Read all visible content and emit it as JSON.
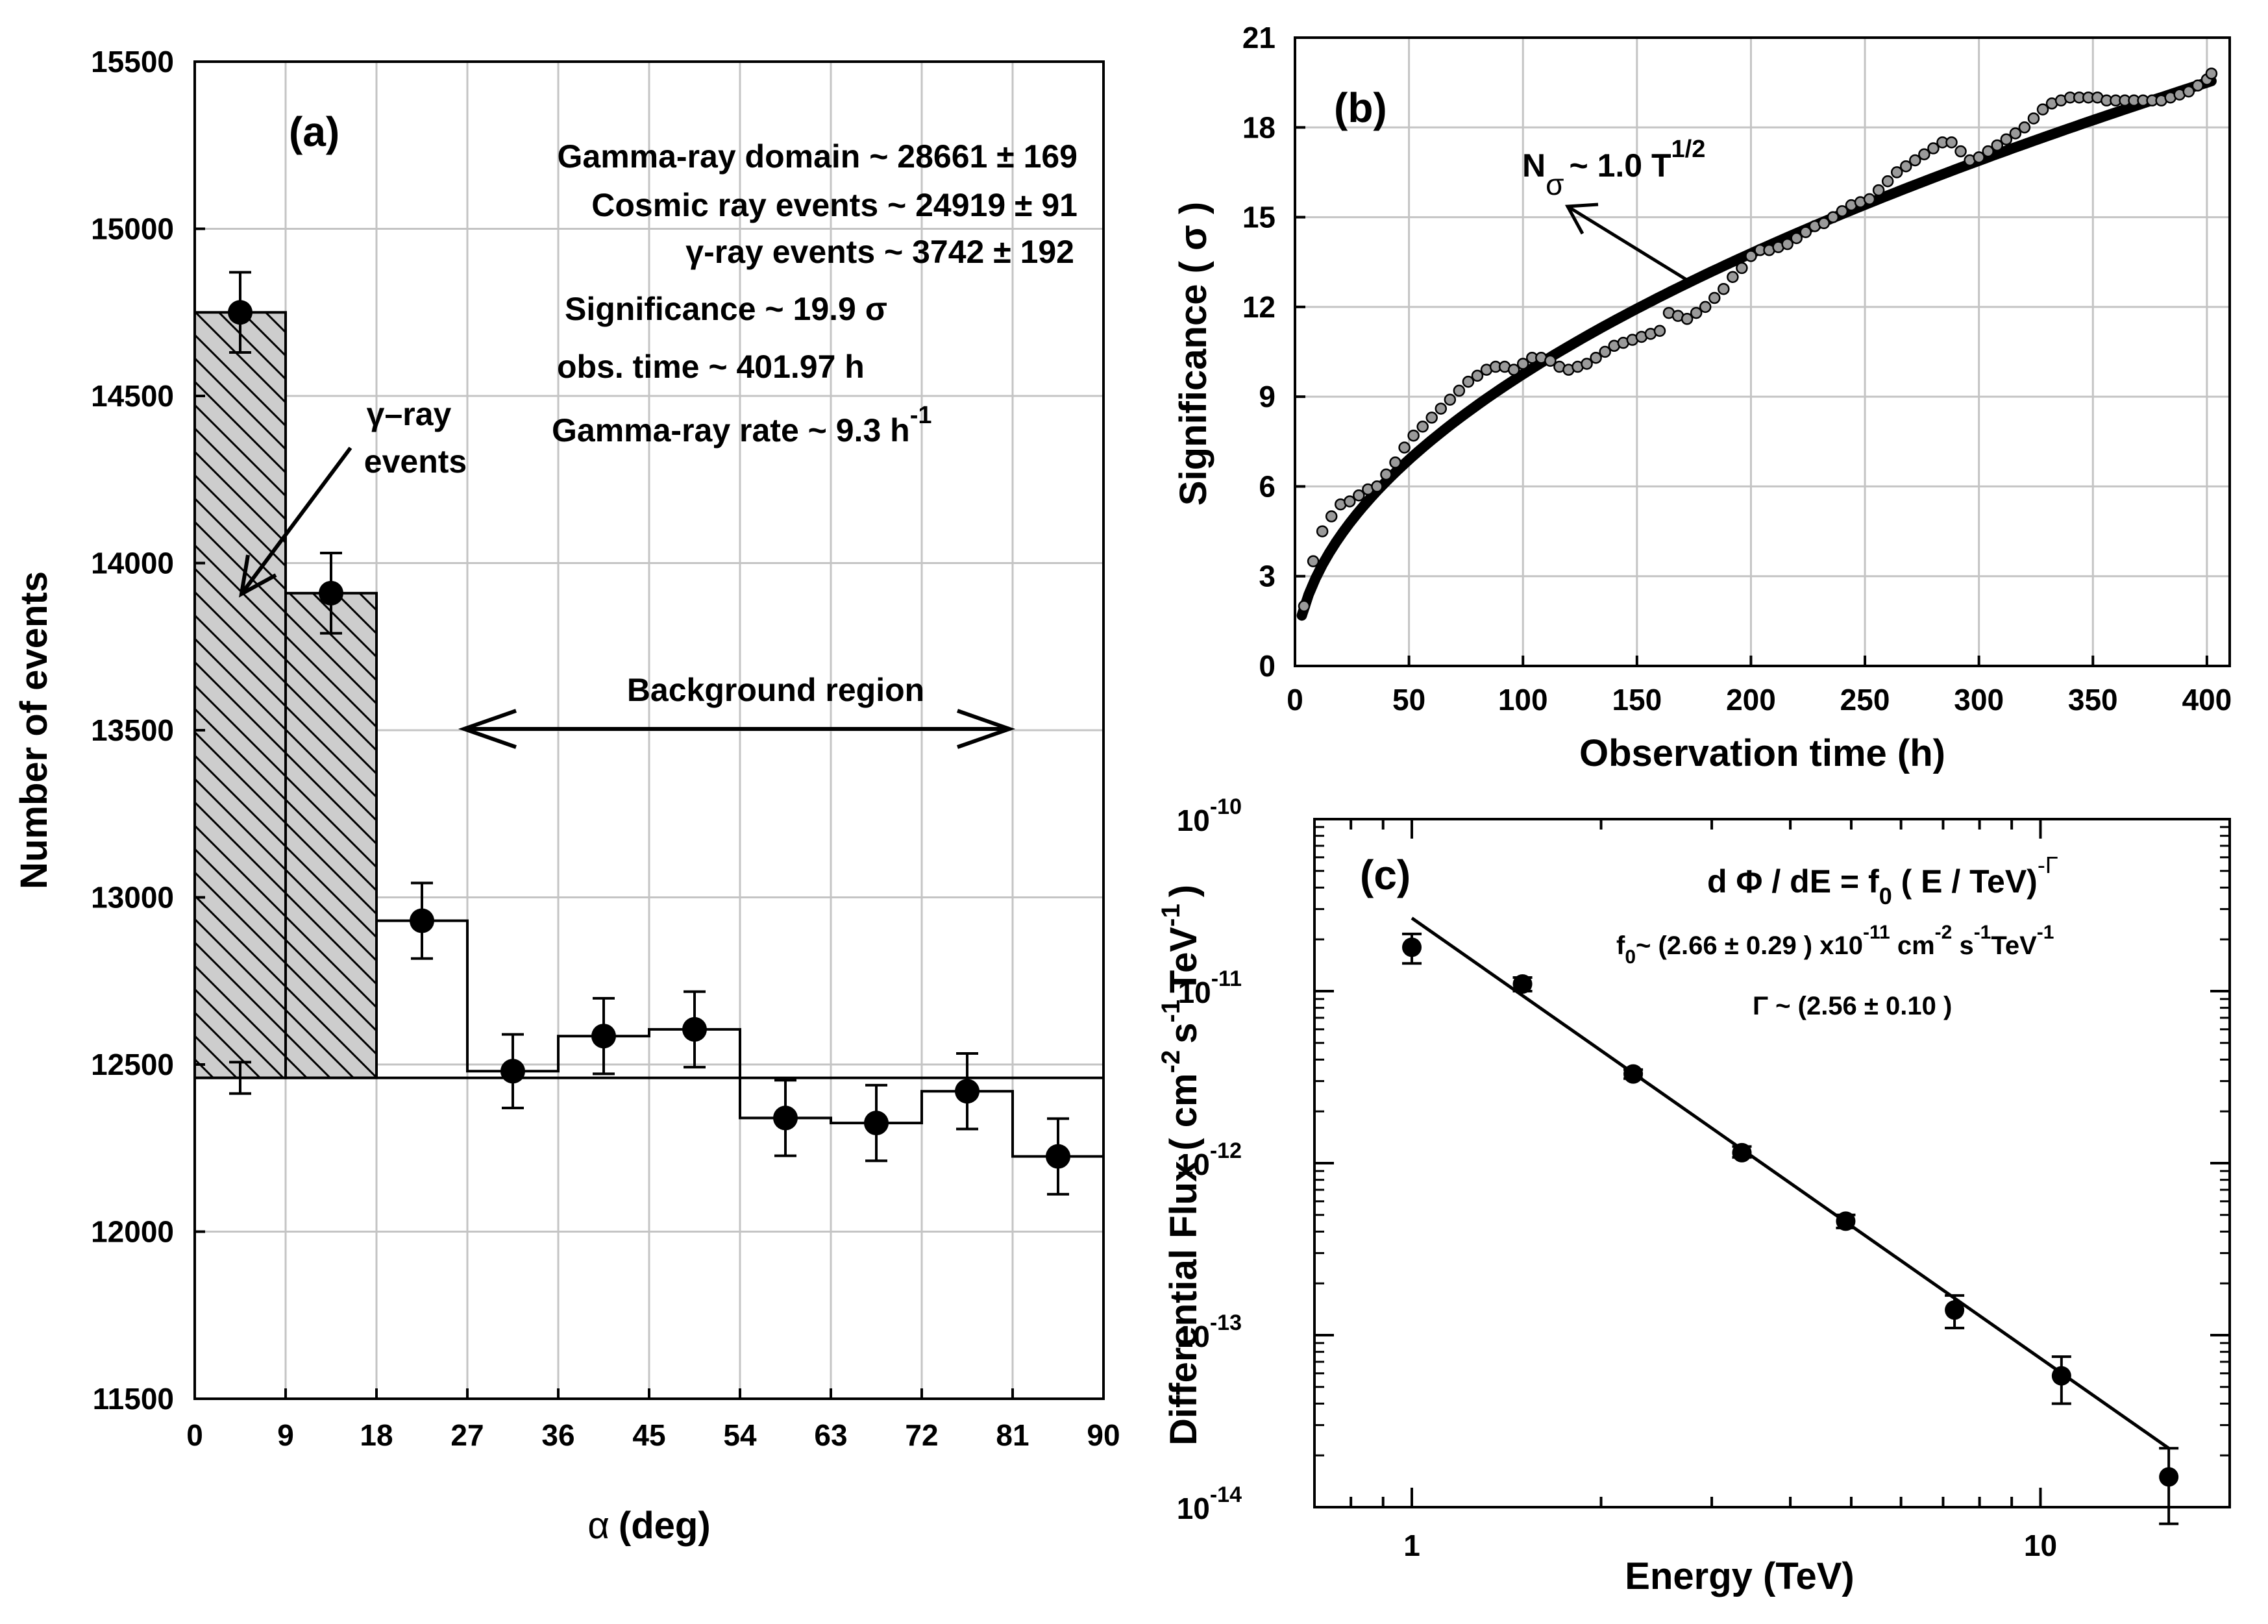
{
  "chart_data": [
    {
      "id": "a",
      "type": "bar",
      "panel_label": "(a)",
      "xlabel_greek": "α",
      "xlabel_unit": "(deg)",
      "ylabel": "Number of  events",
      "xlim": [
        0,
        90
      ],
      "ylim": [
        11500,
        15500
      ],
      "xticks": [
        "0",
        "9",
        "18",
        "27",
        "36",
        "45",
        "54",
        "63",
        "72",
        "81",
        "90"
      ],
      "yticks": [
        "11500",
        "12000",
        "12500",
        "13000",
        "13500",
        "14000",
        "14500",
        "15000",
        "15500"
      ],
      "bin_edges": [
        0,
        9,
        18,
        27,
        36,
        45,
        54,
        63,
        72,
        81,
        90
      ],
      "values": [
        14750,
        13910,
        12930,
        12480,
        12585,
        12605,
        12340,
        12325,
        12420,
        12225
      ],
      "errors": [
        120,
        120,
        113,
        110,
        113,
        113,
        113,
        113,
        113,
        113
      ],
      "shaded_bins": 2,
      "background_level": 12460,
      "background_level_error": 47,
      "annotations": {
        "gamma_domain": "Gamma-ray  domain  ~ 28661 ±  169",
        "cosmic_ray": "Cosmic ray events  ~  24919 ±   91",
        "gamma_events": "γ-ray events   ~   3742 ±  192",
        "significance": "Significance    ~  19.9  σ",
        "obs_time": "obs.  time    ~  401.97 h",
        "gamma_rate": "Gamma-ray rate    ~   9.3  h",
        "gamma_rate_exp": "-1",
        "arrow_label_1": "γ–ray",
        "arrow_label_2": "events",
        "background_region": "Background    region"
      }
    },
    {
      "id": "b",
      "type": "scatter",
      "panel_label": "(b)",
      "xlabel": "Observation time (h)",
      "ylabel": "Significance  ( σ )",
      "xlim": [
        0,
        410
      ],
      "ylim": [
        0,
        21
      ],
      "xticks": [
        "0",
        "50",
        "100",
        "150",
        "200",
        "250",
        "300",
        "350",
        "400"
      ],
      "yticks": [
        "0",
        "3",
        "6",
        "9",
        "12",
        "15",
        "18",
        "21"
      ],
      "x": [
        4,
        8,
        12,
        16,
        20,
        24,
        28,
        32,
        36,
        40,
        44,
        48,
        52,
        56,
        60,
        64,
        68,
        72,
        76,
        80,
        84,
        88,
        92,
        96,
        100,
        104,
        108,
        112,
        116,
        120,
        124,
        128,
        132,
        136,
        140,
        144,
        148,
        152,
        156,
        160,
        164,
        168,
        172,
        176,
        180,
        184,
        188,
        192,
        196,
        200,
        204,
        208,
        212,
        216,
        220,
        224,
        228,
        232,
        236,
        240,
        244,
        248,
        252,
        256,
        260,
        264,
        268,
        272,
        276,
        280,
        284,
        288,
        292,
        296,
        300,
        304,
        308,
        312,
        316,
        320,
        324,
        328,
        332,
        336,
        340,
        344,
        348,
        352,
        356,
        360,
        364,
        368,
        372,
        376,
        380,
        384,
        388,
        392,
        396,
        400,
        402
      ],
      "y": [
        2.0,
        3.5,
        4.5,
        5.0,
        5.4,
        5.5,
        5.7,
        5.9,
        6.0,
        6.4,
        6.8,
        7.3,
        7.7,
        8.0,
        8.3,
        8.6,
        8.9,
        9.2,
        9.5,
        9.7,
        9.9,
        10.0,
        10.0,
        9.9,
        10.1,
        10.3,
        10.3,
        10.2,
        10.0,
        9.9,
        10.0,
        10.1,
        10.3,
        10.5,
        10.7,
        10.8,
        10.9,
        11.0,
        11.1,
        11.2,
        11.8,
        11.7,
        11.6,
        11.8,
        12.0,
        12.3,
        12.6,
        13.0,
        13.3,
        13.7,
        13.9,
        13.9,
        14.0,
        14.1,
        14.3,
        14.5,
        14.7,
        14.8,
        15.0,
        15.2,
        15.4,
        15.5,
        15.6,
        15.9,
        16.2,
        16.5,
        16.7,
        16.9,
        17.1,
        17.3,
        17.5,
        17.5,
        17.2,
        16.9,
        17.0,
        17.2,
        17.4,
        17.6,
        17.8,
        18.0,
        18.3,
        18.6,
        18.8,
        18.9,
        19.0,
        19.0,
        19.0,
        19.0,
        18.9,
        18.9,
        18.9,
        18.9,
        18.9,
        18.9,
        18.9,
        19.0,
        19.1,
        19.2,
        19.4,
        19.6,
        19.8
      ],
      "fit_coefficient": 0.975,
      "fit_label": "N",
      "fit_label_sub": "σ",
      "fit_label_eq": "~  1.0  T",
      "fit_label_exp": "1/2"
    },
    {
      "id": "c",
      "type": "scatter",
      "panel_label": "(c)",
      "xlabel": "Energy (TeV)",
      "ylabel_main": "Differential  Flux  ( cm",
      "ylabel_e1": "-2",
      "ylabel_s": "s",
      "ylabel_e2": "-1",
      "ylabel_tev": "TeV",
      "ylabel_e3": "-1",
      "ylabel_close": ")",
      "xscale": "log",
      "yscale": "log",
      "xlim": [
        0.7,
        20
      ],
      "ylim": [
        1e-14,
        1e-10
      ],
      "xticks": [
        "1",
        "10"
      ],
      "ytick_base": "10",
      "ytick_exps": [
        "-10",
        "-11",
        "-12",
        "-13",
        "-14"
      ],
      "x": [
        1.0,
        1.5,
        2.25,
        3.35,
        4.9,
        7.3,
        10.8,
        16.0
      ],
      "y": [
        1.8e-11,
        1.1e-11,
        3.3e-12,
        1.15e-12,
        4.6e-13,
        1.4e-13,
        5.8e-14,
        1.5e-14
      ],
      "y_err_low": [
        1.45e-11,
        1e-11,
        3.1e-12,
        1.08e-12,
        4.2e-13,
        1.1e-13,
        4e-14,
        8e-15
      ],
      "y_err_high": [
        2.15e-11,
        1.2e-11,
        3.5e-12,
        1.25e-12,
        5e-13,
        1.7e-13,
        7.5e-14,
        2.2e-14
      ],
      "fit_f0": 2.66e-11,
      "fit_gamma": 2.56,
      "fit_range": [
        1.0,
        16.0
      ],
      "eq": {
        "main": "d Φ / dE = f",
        "sub0": "0",
        "rest": " ( E / TeV)",
        "exp": "-Γ"
      },
      "f0_line": {
        "a": "f",
        "a_sub": "0",
        "b": "~ (2.66 ± 0.29 ) x10",
        "b_exp": "-11",
        "c": " cm",
        "c_exp": "-2",
        "d": " s",
        "d_exp": "-1",
        "e": "TeV",
        "e_exp": "-1"
      },
      "gamma_line": "Γ ~ (2.56  ±  0.10 )"
    }
  ]
}
